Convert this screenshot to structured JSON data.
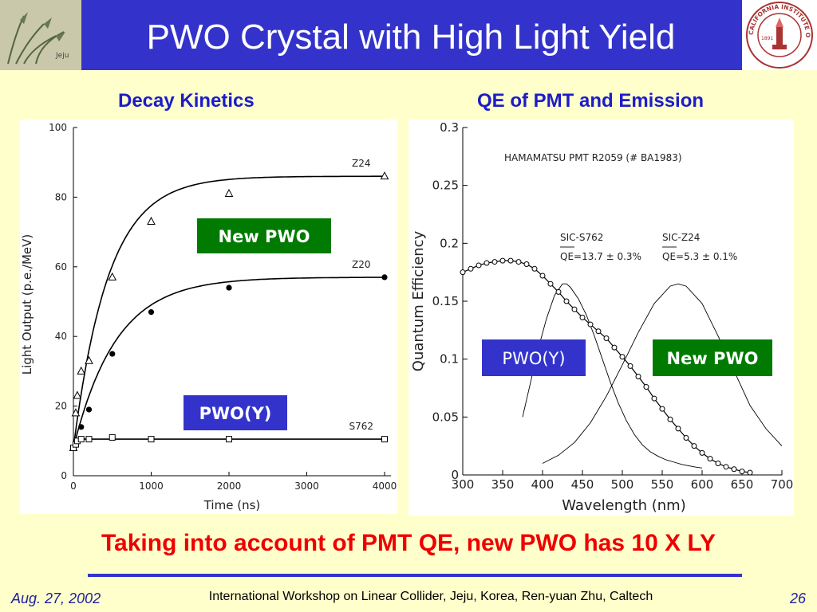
{
  "slide": {
    "title": "PWO Crystal with High Light Yield",
    "left_heading": "Decay Kinetics",
    "right_heading": "QE of PMT and Emission",
    "conclusion": "Taking into account of PMT QE, new PWO has 10 X LY",
    "footer_date": "Aug. 27, 2002",
    "footer_text": "International Workshop on Linear Collider, Jeju, Korea, Ren-yuan Zhu, Caltech",
    "page_number": "26",
    "caltech_logo_text": "CALIFORNIA INSTITUTE OF TECHNOLOGY",
    "caltech_logo_year": "1891",
    "jeju_logo_text": "Jeju",
    "colors": {
      "header": "#3333cc",
      "background": "#ffffcc",
      "green_box": "#007a00",
      "blue_box": "#3333cc",
      "conclusion": "#ee0000"
    }
  },
  "chart_data": [
    {
      "type": "scatter",
      "xlabel": "Time (ns)",
      "ylabel": "Light Output (p.e./MeV)",
      "xlim": [
        0,
        4000
      ],
      "ylim": [
        0,
        100
      ],
      "xticks": [
        0,
        1000,
        2000,
        3000,
        4000
      ],
      "yticks": [
        0,
        20,
        40,
        60,
        80,
        100
      ],
      "series": [
        {
          "name": "Z24",
          "marker": "triangle-open",
          "x": [
            0,
            30,
            50,
            100,
            200,
            500,
            1000,
            2000,
            4000
          ],
          "y": [
            8,
            18,
            23,
            30,
            33,
            57,
            73,
            81,
            86
          ],
          "fit": {
            "max": 86,
            "tau": 450
          }
        },
        {
          "name": "Z20",
          "marker": "circle-filled",
          "x": [
            0,
            30,
            50,
            100,
            200,
            500,
            1000,
            2000,
            4000
          ],
          "y": [
            8,
            9,
            10,
            14,
            19,
            35,
            47,
            54,
            57
          ],
          "fit": {
            "max": 57,
            "tau": 550
          }
        },
        {
          "name": "S762",
          "marker": "square-open",
          "x": [
            0,
            30,
            50,
            100,
            200,
            500,
            1000,
            2000,
            4000
          ],
          "y": [
            8,
            9,
            10,
            10.5,
            10.5,
            11,
            10.5,
            10.5,
            10.5
          ],
          "fit": {
            "max": 10.5,
            "tau": 20
          }
        }
      ],
      "annotations": [
        {
          "text": "New PWO",
          "color": "#007a00"
        },
        {
          "text": "PWO(Y)",
          "color": "#3333cc"
        }
      ]
    },
    {
      "type": "line",
      "title": "HAMAMATSU  PMT R2059 (# BA1983)",
      "xlabel": "Wavelength (nm)",
      "ylabel": "Quantum Efficiency",
      "xlim": [
        300,
        700
      ],
      "ylim": [
        0,
        0.3
      ],
      "xticks": [
        300,
        350,
        400,
        450,
        500,
        550,
        600,
        650,
        700
      ],
      "yticks": [
        "0",
        "0.05",
        "0.1",
        "0.15",
        "0.2",
        "0.25",
        "0.3"
      ],
      "legend": [
        {
          "name": "SIC-S762",
          "qe": "QE=13.7 ± 0.3%"
        },
        {
          "name": "SIC-Z24",
          "qe": "QE=5.3 ± 0.1%"
        }
      ],
      "series": [
        {
          "name": "PMT QE",
          "marker": "circle-dot",
          "x": [
            300,
            310,
            320,
            330,
            340,
            350,
            360,
            370,
            380,
            390,
            400,
            410,
            420,
            430,
            440,
            450,
            460,
            470,
            480,
            490,
            500,
            510,
            520,
            530,
            540,
            550,
            560,
            570,
            580,
            590,
            600,
            610,
            620,
            630,
            640,
            650,
            660
          ],
          "y": [
            0.175,
            0.178,
            0.181,
            0.183,
            0.184,
            0.185,
            0.185,
            0.184,
            0.182,
            0.178,
            0.172,
            0.165,
            0.158,
            0.15,
            0.143,
            0.136,
            0.13,
            0.124,
            0.118,
            0.11,
            0.102,
            0.094,
            0.085,
            0.076,
            0.066,
            0.057,
            0.048,
            0.04,
            0.032,
            0.025,
            0.019,
            0.014,
            0.01,
            0.007,
            0.005,
            0.003,
            0.002
          ]
        },
        {
          "name": "SIC-S762 emission",
          "x": [
            375,
            385,
            395,
            405,
            415,
            425,
            430,
            435,
            445,
            455,
            465,
            475,
            485,
            495,
            505,
            515,
            525,
            535,
            545,
            555,
            565,
            575,
            590,
            600
          ],
          "y": [
            0.05,
            0.08,
            0.11,
            0.135,
            0.155,
            0.165,
            0.165,
            0.162,
            0.152,
            0.138,
            0.12,
            0.1,
            0.08,
            0.062,
            0.047,
            0.035,
            0.026,
            0.02,
            0.016,
            0.013,
            0.011,
            0.009,
            0.007,
            0.006
          ]
        },
        {
          "name": "SIC-Z24 emission",
          "x": [
            400,
            420,
            440,
            460,
            480,
            500,
            520,
            540,
            560,
            570,
            580,
            600,
            620,
            640,
            660,
            680,
            700
          ],
          "y": [
            0.01,
            0.017,
            0.028,
            0.045,
            0.068,
            0.095,
            0.123,
            0.148,
            0.163,
            0.165,
            0.163,
            0.148,
            0.12,
            0.09,
            0.06,
            0.04,
            0.025
          ]
        }
      ],
      "annotations": [
        {
          "text": "PWO(Y)",
          "color": "#3333cc"
        },
        {
          "text": "New PWO",
          "color": "#007a00"
        }
      ]
    }
  ]
}
